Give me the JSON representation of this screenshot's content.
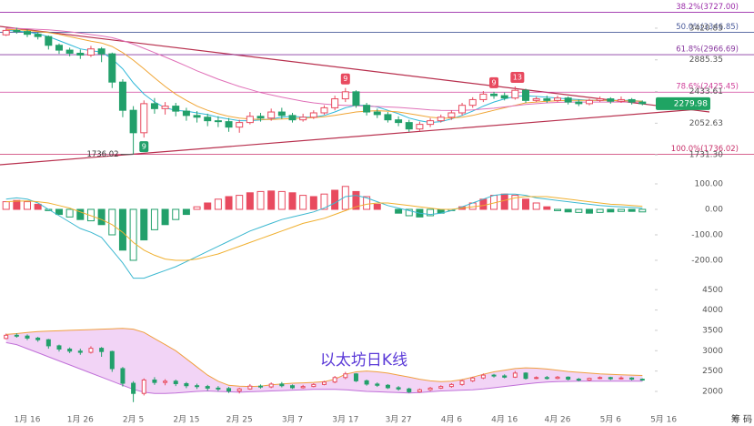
{
  "chart_data": [
    {
      "type": "candlestick",
      "categories": [
        null,
        null,
        "1月 16",
        null,
        null,
        null,
        null,
        "1月 26",
        null,
        null,
        null,
        null,
        "2月 5",
        null,
        null,
        null,
        null,
        "2月 15",
        null,
        null,
        null,
        null,
        "2月 25",
        null,
        null,
        null,
        null,
        "3月 7",
        null,
        null,
        null,
        null,
        "3月 17",
        null,
        null,
        null,
        null,
        "3月 27",
        null,
        null,
        null,
        null,
        "4月 6",
        null,
        null,
        null,
        null,
        "4月 16",
        null,
        null,
        null,
        null,
        "4月 26",
        null,
        null,
        null,
        null,
        "5月 6",
        null,
        null,
        null,
        null,
        "5月 16"
      ],
      "open": [
        3300,
        3380,
        3360,
        3310,
        3270,
        3120,
        3040,
        2990,
        2960,
        3060,
        2980,
        2560,
        2200,
        1950,
        2280,
        2220,
        2250,
        2190,
        2140,
        2120,
        2080,
        2070,
        2010,
        2060,
        2130,
        2110,
        2180,
        2140,
        2090,
        2120,
        2170,
        2230,
        2340,
        2430,
        2260,
        2180,
        2150,
        2090,
        2060,
        1990,
        2040,
        2080,
        2120,
        2170,
        2260,
        2330,
        2400,
        2380,
        2350,
        2450,
        2320,
        2340,
        2320,
        2350,
        2300,
        2280,
        2320,
        2340,
        2310,
        2330,
        2300,
        null,
        null
      ],
      "high": [
        3420,
        3430,
        3400,
        3340,
        3290,
        3150,
        3080,
        3050,
        3110,
        3090,
        3000,
        2600,
        2250,
        2320,
        2350,
        2300,
        2290,
        2230,
        2190,
        2160,
        2130,
        2110,
        2090,
        2180,
        2170,
        2220,
        2230,
        2170,
        2160,
        2200,
        2260,
        2380,
        2480,
        2450,
        2290,
        2220,
        2180,
        2130,
        2090,
        2070,
        2110,
        2150,
        2200,
        2290,
        2360,
        2440,
        2430,
        2420,
        2500,
        2470,
        2370,
        2380,
        2380,
        2370,
        2330,
        2340,
        2370,
        2360,
        2370,
        2350,
        2320,
        null,
        null
      ],
      "low": [
        3280,
        3320,
        3260,
        3220,
        3050,
        2980,
        2940,
        2900,
        2930,
        2850,
        2480,
        2120,
        1736.02,
        1900,
        2160,
        2150,
        2130,
        2080,
        2060,
        2020,
        2010,
        1960,
        1950,
        2040,
        2070,
        2080,
        2100,
        2060,
        2070,
        2100,
        2150,
        2200,
        2300,
        2230,
        2140,
        2110,
        2060,
        2020,
        1960,
        1970,
        2010,
        2060,
        2090,
        2140,
        2230,
        2300,
        2340,
        2320,
        2330,
        2290,
        2300,
        2290,
        2300,
        2270,
        2250,
        2260,
        2300,
        2280,
        2290,
        2270,
        2260,
        null,
        null
      ],
      "close": [
        3380,
        3360,
        3310,
        3270,
        3120,
        3040,
        2990,
        2960,
        3060,
        2980,
        2560,
        2200,
        1950,
        2280,
        2220,
        2250,
        2190,
        2140,
        2120,
        2080,
        2070,
        2010,
        2060,
        2130,
        2110,
        2180,
        2140,
        2090,
        2120,
        2170,
        2230,
        2340,
        2430,
        2260,
        2180,
        2150,
        2090,
        2060,
        1990,
        2040,
        2080,
        2120,
        2170,
        2260,
        2330,
        2400,
        2380,
        2350,
        2450,
        2320,
        2340,
        2320,
        2350,
        2300,
        2280,
        2320,
        2340,
        2310,
        2330,
        2300,
        2279.98,
        null,
        null
      ],
      "up_color": "#e84a5f",
      "down_color": "#22a06b",
      "lines": [
        {
          "color": "#2fb8d8",
          "values": [
            3380,
            3370,
            3350,
            3320,
            3270,
            3200,
            3130,
            3060,
            3030,
            3010,
            2900,
            2750,
            2550,
            2400,
            2300,
            2230,
            2200,
            2190,
            2170,
            2150,
            2120,
            2100,
            2080,
            2080,
            2090,
            2100,
            2120,
            2130,
            2120,
            2120,
            2140,
            2180,
            2230,
            2260,
            2260,
            2240,
            2200,
            2160,
            2110,
            2080,
            2060,
            2070,
            2100,
            2140,
            2190,
            2250,
            2300,
            2340,
            2370,
            2380,
            2370,
            2360,
            2350,
            2340,
            2330,
            2320,
            2320,
            2320,
            2320,
            2320,
            2310,
            null,
            null
          ]
        },
        {
          "color": "#f0a535",
          "values": [
            3400,
            3390,
            3380,
            3360,
            3340,
            3310,
            3270,
            3230,
            3190,
            3160,
            3100,
            3000,
            2880,
            2750,
            2620,
            2500,
            2400,
            2320,
            2250,
            2200,
            2160,
            2130,
            2110,
            2100,
            2095,
            2095,
            2100,
            2105,
            2110,
            2115,
            2125,
            2140,
            2160,
            2180,
            2190,
            2195,
            2190,
            2180,
            2160,
            2140,
            2120,
            2110,
            2110,
            2120,
            2140,
            2170,
            2200,
            2230,
            2260,
            2290,
            2300,
            2310,
            2315,
            2320,
            2320,
            2320,
            2320,
            2320,
            2315,
            2315,
            2310,
            null,
            null
          ]
        },
        {
          "color": "#e070b8",
          "values": [
            3420,
            3415,
            3410,
            3400,
            3390,
            3375,
            3355,
            3330,
            3305,
            3280,
            3250,
            3200,
            3140,
            3070,
            3000,
            2930,
            2860,
            2790,
            2720,
            2660,
            2600,
            2550,
            2500,
            2460,
            2420,
            2390,
            2360,
            2335,
            2310,
            2290,
            2275,
            2265,
            2260,
            2255,
            2250,
            2245,
            2240,
            2235,
            2225,
            2215,
            2205,
            2200,
            2198,
            2200,
            2205,
            2215,
            2225,
            2240,
            2255,
            2270,
            2280,
            2290,
            2295,
            2300,
            2300,
            2300,
            2300,
            2300,
            2300,
            2300,
            2300,
            null,
            null
          ]
        }
      ],
      "signals": [
        null,
        null,
        null,
        null,
        null,
        null,
        null,
        null,
        null,
        null,
        null,
        null,
        null,
        {
          "label": "9",
          "color": "#22a06b",
          "side": "below"
        },
        null,
        null,
        null,
        null,
        null,
        null,
        null,
        null,
        null,
        null,
        null,
        null,
        null,
        null,
        null,
        null,
        null,
        null,
        {
          "label": "9",
          "color": "#e84a5f",
          "side": "above"
        },
        null,
        null,
        null,
        null,
        null,
        null,
        null,
        null,
        null,
        null,
        null,
        null,
        null,
        {
          "label": "9",
          "color": "#e84a5f",
          "side": "above"
        },
        null,
        {
          "label": "13",
          "color": "#e84a5f",
          "side": "above"
        },
        null,
        null,
        null,
        null,
        null,
        null,
        null,
        null,
        null,
        null,
        null,
        null,
        null,
        null
      ],
      "fib_levels": [
        {
          "label": "38.2%(3727.00)",
          "value": 3727,
          "color": "#9a2aa8"
        },
        {
          "label": "50.0%(3346.85)",
          "value": 3346.85,
          "color": "#4a5a9a"
        },
        {
          "label": "61.8%(2966.69)",
          "value": 2966.69,
          "color": "#8a3aa0"
        },
        {
          "label": "78.6%(2425.45)",
          "value": 2425.45,
          "color": "#d0409a"
        },
        {
          "label": "100.0%(1736.02)",
          "value": 1736.02,
          "color": "#c8306a"
        }
      ],
      "low_annotation": {
        "value": 1736.02,
        "label": "1736.02"
      },
      "last_price": 2279.98,
      "ylim": [
        1610,
        3980
      ],
      "log": true,
      "yticks": [
        3420.83,
        2885.35,
        2433.61,
        2052.63,
        {
          "value": 1731.3,
          "label": "1731.30"
        }
      ]
    },
    {
      "type": "macd",
      "values": [
        30,
        35,
        30,
        20,
        -5,
        -20,
        -30,
        -40,
        -45,
        -60,
        -100,
        -160,
        -200,
        -120,
        -80,
        -60,
        -40,
        -20,
        10,
        25,
        40,
        50,
        55,
        65,
        70,
        72,
        70,
        65,
        55,
        50,
        60,
        75,
        90,
        70,
        50,
        20,
        0,
        -15,
        -25,
        -30,
        -25,
        -15,
        -5,
        10,
        25,
        40,
        55,
        60,
        55,
        40,
        25,
        10,
        -5,
        -10,
        -12,
        -15,
        -12,
        -10,
        -8,
        -8,
        -10,
        null,
        null
      ],
      "up_color": "#e84a5f",
      "down_color": "#22a06b",
      "lines": [
        {
          "color": "#3cb8d0",
          "values": [
            40,
            45,
            40,
            25,
            0,
            -25,
            -50,
            -75,
            -90,
            -110,
            -160,
            -210,
            -270,
            -270,
            -255,
            -240,
            -225,
            -205,
            -185,
            -165,
            -145,
            -125,
            -105,
            -85,
            -70,
            -55,
            -40,
            -30,
            -20,
            -10,
            5,
            25,
            50,
            55,
            45,
            30,
            15,
            5,
            -5,
            -15,
            -20,
            -15,
            -5,
            10,
            25,
            40,
            55,
            60,
            60,
            55,
            45,
            40,
            35,
            30,
            25,
            20,
            15,
            12,
            10,
            8,
            5,
            null,
            null
          ]
        },
        {
          "color": "#f0b030",
          "values": [
            30,
            32,
            33,
            30,
            25,
            15,
            5,
            -10,
            -25,
            -40,
            -60,
            -90,
            -130,
            -160,
            -180,
            -195,
            -200,
            -200,
            -195,
            -185,
            -175,
            -160,
            -145,
            -130,
            -115,
            -100,
            -85,
            -70,
            -55,
            -45,
            -35,
            -20,
            -5,
            10,
            20,
            25,
            25,
            20,
            15,
            10,
            5,
            0,
            0,
            5,
            10,
            15,
            25,
            35,
            45,
            50,
            50,
            50,
            45,
            40,
            35,
            30,
            25,
            20,
            18,
            15,
            12,
            null,
            null
          ]
        }
      ],
      "ylim": [
        -293,
        150
      ],
      "yticks": [
        {
          "value": 100,
          "label": "100.00"
        },
        {
          "value": 0,
          "label": "0.00"
        },
        {
          "value": -100,
          "label": "-100.00"
        },
        {
          "value": -200,
          "label": "-200.00"
        }
      ]
    },
    {
      "type": "band",
      "title": "以太坊日K线",
      "upper": {
        "color": "#f0a040",
        "values": [
          3400,
          3420,
          3450,
          3470,
          3480,
          3490,
          3500,
          3510,
          3520,
          3530,
          3540,
          3550,
          3530,
          3450,
          3300,
          3150,
          3000,
          2800,
          2600,
          2400,
          2250,
          2150,
          2130,
          2120,
          2130,
          2160,
          2180,
          2200,
          2210,
          2220,
          2240,
          2300,
          2420,
          2480,
          2500,
          2480,
          2450,
          2400,
          2350,
          2300,
          2260,
          2240,
          2250,
          2290,
          2350,
          2420,
          2480,
          2520,
          2560,
          2580,
          2570,
          2550,
          2520,
          2490,
          2470,
          2450,
          2430,
          2420,
          2410,
          2400,
          2390,
          null,
          null
        ]
      },
      "lower": {
        "color": "#c070d8",
        "values": [
          3200,
          3150,
          3050,
          2950,
          2850,
          2750,
          2650,
          2550,
          2450,
          2350,
          2250,
          2150,
          2050,
          1980,
          1950,
          1950,
          1960,
          1980,
          2000,
          2010,
          2000,
          1990,
          1980,
          1990,
          2000,
          2010,
          2020,
          2030,
          2040,
          2050,
          2050,
          2050,
          2040,
          2020,
          2000,
          1990,
          1980,
          1970,
          1960,
          1970,
          1990,
          2010,
          2020,
          2030,
          2040,
          2060,
          2090,
          2120,
          2150,
          2180,
          2210,
          2230,
          2240,
          2245,
          2250,
          2250,
          2250,
          2250,
          2250,
          2250,
          2250,
          null,
          null
        ]
      },
      "fill": "#f2d4f6",
      "ylim": [
        1440,
        4640
      ],
      "yticks": [
        2000,
        2500,
        3000,
        3500,
        4000,
        4500
      ]
    }
  ],
  "toolbar": "筹 码"
}
